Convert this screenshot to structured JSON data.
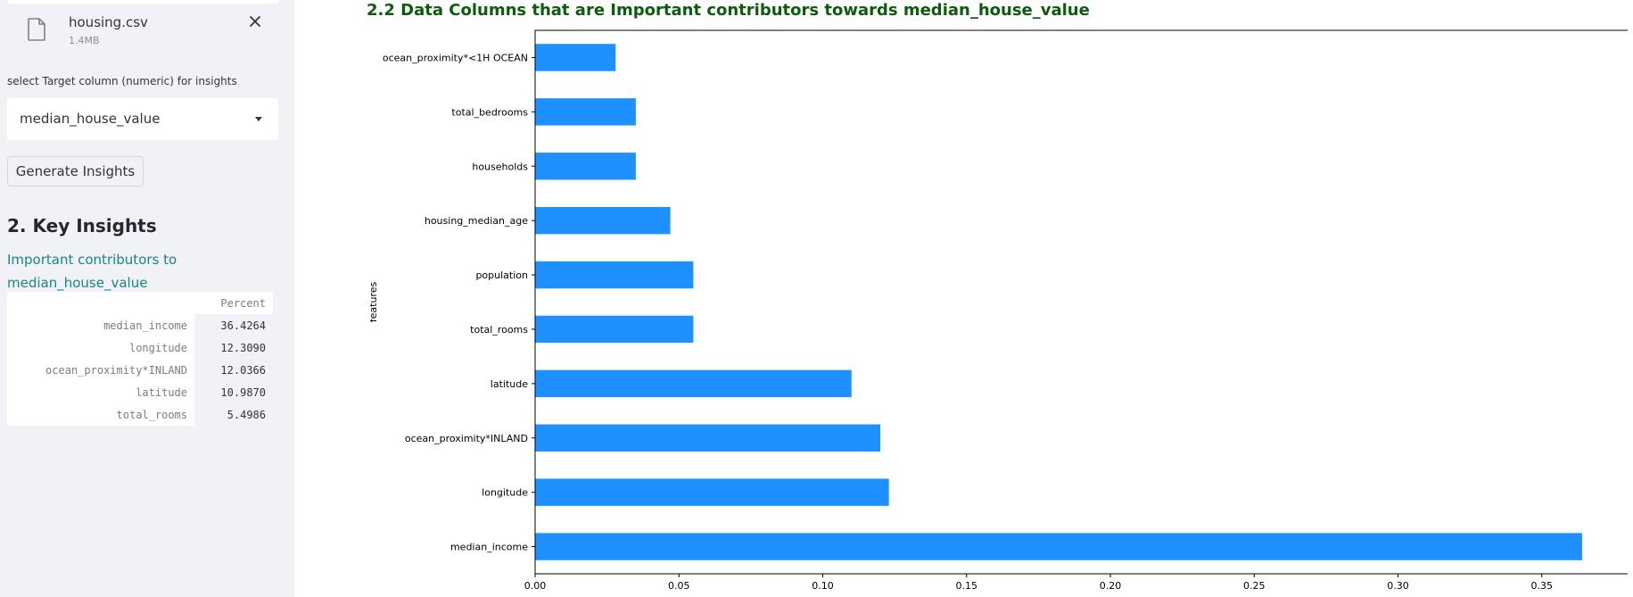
{
  "sidebar": {
    "file": {
      "name": "housing.csv",
      "size": "1.4MB"
    },
    "target_label": "select Target column (numeric) for insights",
    "target_select": {
      "value": "median_house_value"
    },
    "generate_button": "Generate Insights",
    "insights_title": "2. Key Insights",
    "insights_subtitle": "Important contributors to median_house_value",
    "table": {
      "header": "Percent",
      "rows": [
        {
          "name": "median_income",
          "value": "36.4264"
        },
        {
          "name": "longitude",
          "value": "12.3090"
        },
        {
          "name": "ocean_proximity*INLAND",
          "value": "12.0366"
        },
        {
          "name": "latitude",
          "value": "10.9870"
        },
        {
          "name": "total_rooms",
          "value": "5.4986"
        }
      ]
    }
  },
  "main": {
    "title": "2.2 Data Columns that are Important contributors towards median_house_value"
  },
  "chart_data": {
    "type": "bar",
    "orientation": "horizontal",
    "categories": [
      "ocean_proximity*<1H OCEAN",
      "total_bedrooms",
      "households",
      "housing_median_age",
      "population",
      "total_rooms",
      "latitude",
      "ocean_proximity*INLAND",
      "longitude",
      "median_income"
    ],
    "values": [
      0.028,
      0.035,
      0.035,
      0.047,
      0.055,
      0.055,
      0.11,
      0.12,
      0.123,
      0.364
    ],
    "xlim": [
      0,
      0.382
    ],
    "xticks": [
      0.0,
      0.05,
      0.1,
      0.15,
      0.2,
      0.25,
      0.3,
      0.35
    ],
    "xtick_labels": [
      "0.00",
      "0.05",
      "0.10",
      "0.15",
      "0.20",
      "0.25",
      "0.30",
      "0.35"
    ],
    "ylabel": "features",
    "bar_color": "#1e90ff",
    "grid": false
  }
}
